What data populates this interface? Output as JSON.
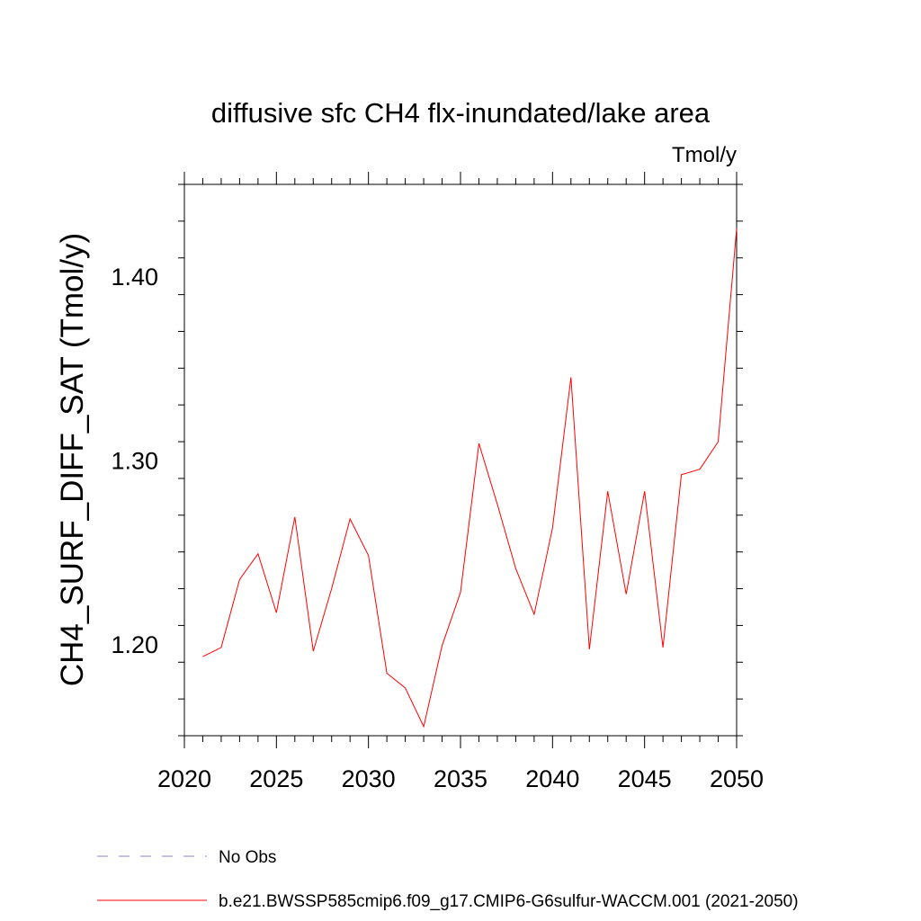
{
  "chart_data": {
    "type": "line",
    "title": "diffusive sfc CH4 flx-inundated/lake area",
    "units": "Tmol/y",
    "xlabel": "",
    "ylabel": "CH4_SURF_DIFF_SAT  (Tmol/y)",
    "xlim": [
      2020,
      2050
    ],
    "ylim": [
      1.15,
      1.45
    ],
    "x_ticks": [
      2020,
      2025,
      2030,
      2035,
      2040,
      2045,
      2050
    ],
    "x_tick_labels": [
      "2020",
      "2025",
      "2030",
      "2035",
      "2040",
      "2045",
      "2050"
    ],
    "y_ticks": [
      1.2,
      1.3,
      1.4
    ],
    "y_tick_labels": [
      "1.20",
      "1.30",
      "1.40"
    ],
    "grid": false,
    "legend_placement": "bottom",
    "series": [
      {
        "name": "b.e21.BWSSP585cmip6.f09_g17.CMIP6-G6sulfur-WACCM.001 (2021-2050)",
        "color": "#ff0000",
        "dash": "solid",
        "x": [
          2021,
          2022,
          2023,
          2024,
          2025,
          2026,
          2027,
          2028,
          2029,
          2030,
          2031,
          2032,
          2033,
          2034,
          2035,
          2036,
          2037,
          2038,
          2039,
          2040,
          2041,
          2042,
          2043,
          2044,
          2045,
          2046,
          2047,
          2048,
          2049,
          2050
        ],
        "y": [
          1.193,
          1.198,
          1.235,
          1.249,
          1.217,
          1.269,
          1.196,
          1.23,
          1.268,
          1.248,
          1.184,
          1.176,
          1.155,
          1.199,
          1.228,
          1.309,
          1.276,
          1.241,
          1.216,
          1.263,
          1.345,
          1.197,
          1.283,
          1.227,
          1.283,
          1.198,
          1.292,
          1.295,
          1.31,
          1.426
        ]
      }
    ],
    "legend": [
      {
        "label": "No Obs",
        "color": "#8888cc",
        "dash": "dashed"
      },
      {
        "label": "b.e21.BWSSP585cmip6.f09_g17.CMIP6-G6sulfur-WACCM.001 (2021-2050)",
        "color": "#ff0000",
        "dash": "solid"
      }
    ]
  }
}
